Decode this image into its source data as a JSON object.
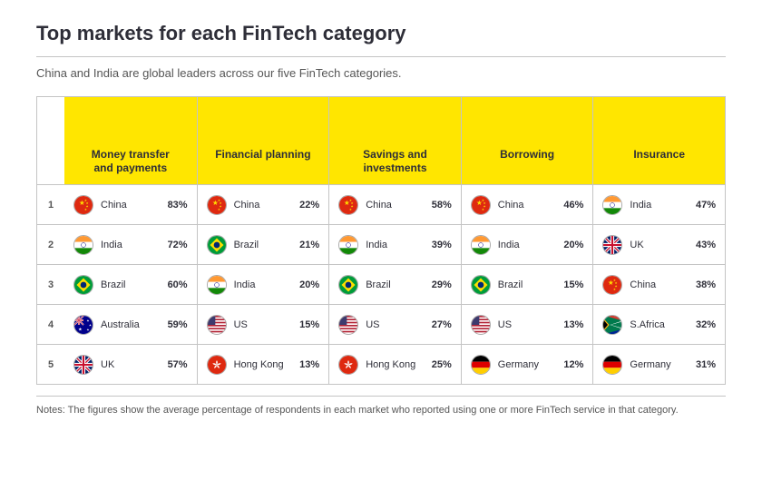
{
  "title": "Top markets for each FinTech category",
  "subtitle": "China and India are global leaders across our five FinTech categories.",
  "notes_label": "Notes:",
  "notes_text": "The figures show the average percentage of respondents in each market who reported using one or more FinTech service in that category.",
  "header_bg": "#ffe600",
  "border_color": "#c4c4c4",
  "categories": [
    {
      "label": "Money transfer and payments",
      "icon": "phone"
    },
    {
      "label": "Financial planning",
      "icon": "chart"
    },
    {
      "label": "Savings and investments",
      "icon": "piggy"
    },
    {
      "label": "Borrowing",
      "icon": "borrow"
    },
    {
      "label": "Insurance",
      "icon": "car"
    }
  ],
  "ranks": [
    1,
    2,
    3,
    4,
    5
  ],
  "rows": [
    [
      {
        "country": "China",
        "pct": "83%",
        "flag": "cn"
      },
      {
        "country": "China",
        "pct": "22%",
        "flag": "cn"
      },
      {
        "country": "China",
        "pct": "58%",
        "flag": "cn"
      },
      {
        "country": "China",
        "pct": "46%",
        "flag": "cn"
      },
      {
        "country": "India",
        "pct": "47%",
        "flag": "in"
      }
    ],
    [
      {
        "country": "India",
        "pct": "72%",
        "flag": "in"
      },
      {
        "country": "Brazil",
        "pct": "21%",
        "flag": "br"
      },
      {
        "country": "India",
        "pct": "39%",
        "flag": "in"
      },
      {
        "country": "India",
        "pct": "20%",
        "flag": "in"
      },
      {
        "country": "UK",
        "pct": "43%",
        "flag": "uk"
      }
    ],
    [
      {
        "country": "Brazil",
        "pct": "60%",
        "flag": "br"
      },
      {
        "country": "India",
        "pct": "20%",
        "flag": "in"
      },
      {
        "country": "Brazil",
        "pct": "29%",
        "flag": "br"
      },
      {
        "country": "Brazil",
        "pct": "15%",
        "flag": "br"
      },
      {
        "country": "China",
        "pct": "38%",
        "flag": "cn"
      }
    ],
    [
      {
        "country": "Australia",
        "pct": "59%",
        "flag": "au"
      },
      {
        "country": "US",
        "pct": "15%",
        "flag": "us"
      },
      {
        "country": "US",
        "pct": "27%",
        "flag": "us"
      },
      {
        "country": "US",
        "pct": "13%",
        "flag": "us"
      },
      {
        "country": "S.Africa",
        "pct": "32%",
        "flag": "za"
      }
    ],
    [
      {
        "country": "UK",
        "pct": "57%",
        "flag": "uk"
      },
      {
        "country": "Hong Kong",
        "pct": "13%",
        "flag": "hk"
      },
      {
        "country": "Hong Kong",
        "pct": "25%",
        "flag": "hk"
      },
      {
        "country": "Germany",
        "pct": "12%",
        "flag": "de"
      },
      {
        "country": "Germany",
        "pct": "31%",
        "flag": "de"
      }
    ]
  ]
}
